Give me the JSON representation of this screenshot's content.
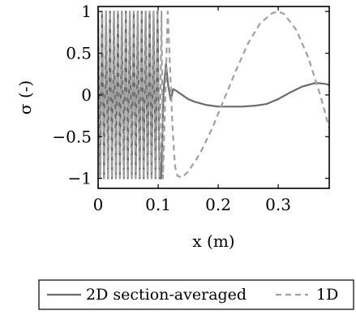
{
  "chart_data": {
    "type": "line",
    "title": "",
    "xlabel": "x (m)",
    "ylabel": "σ (-)",
    "xlim": [
      0,
      0.385
    ],
    "ylim": [
      -1.12,
      1.06
    ],
    "x_ticks": [
      0,
      0.1,
      0.2,
      0.3
    ],
    "x_tick_labels": [
      "0",
      "0.1",
      "0.2",
      "0.3"
    ],
    "y_ticks": [
      1,
      0.5,
      0,
      -0.5,
      -1
    ],
    "y_tick_labels": [
      "1",
      "0.5",
      "0",
      "−0.5",
      "−1"
    ],
    "grid": false,
    "legend_position": "bottom",
    "series": [
      {
        "name": "2D section-averaged",
        "color": "#6b6b6b",
        "dash": "solid",
        "oscillation": {
          "x_start": 0,
          "x_end": 0.105,
          "period": 0.0066,
          "amplitude": 1
        },
        "x": [
          0.105,
          0.109,
          0.113,
          0.117,
          0.121,
          0.125,
          0.13,
          0.14,
          0.15,
          0.16,
          0.18,
          0.2,
          0.22,
          0.24,
          0.26,
          0.28,
          0.3,
          0.32,
          0.34,
          0.36,
          0.37,
          0.38,
          0.385
        ],
        "y": [
          -1.0,
          0.05,
          0.37,
          0.1,
          -0.06,
          0.07,
          0.05,
          0.0,
          -0.05,
          -0.08,
          -0.12,
          -0.14,
          -0.14,
          -0.14,
          -0.13,
          -0.11,
          -0.05,
          0.03,
          0.1,
          0.14,
          0.14,
          0.13,
          0.12
        ]
      },
      {
        "name": "1D",
        "color": "#a0a0a0",
        "dash": "dashed",
        "oscillation": {
          "x_start": 0,
          "x_end": 0.108,
          "period": 0.0066,
          "amplitude": 1
        },
        "x": [
          0.108,
          0.112,
          0.116,
          0.12,
          0.124,
          0.128,
          0.132,
          0.14,
          0.15,
          0.17,
          0.19,
          0.21,
          0.23,
          0.25,
          0.27,
          0.29,
          0.3,
          0.31,
          0.33,
          0.35,
          0.37,
          0.385
        ],
        "y": [
          -1.0,
          0.0,
          1.0,
          0.3,
          -0.4,
          -0.85,
          -0.97,
          -0.99,
          -0.92,
          -0.7,
          -0.4,
          -0.05,
          0.3,
          0.62,
          0.86,
          0.98,
          1.0,
          0.97,
          0.78,
          0.45,
          0.0,
          -0.4
        ]
      }
    ]
  }
}
